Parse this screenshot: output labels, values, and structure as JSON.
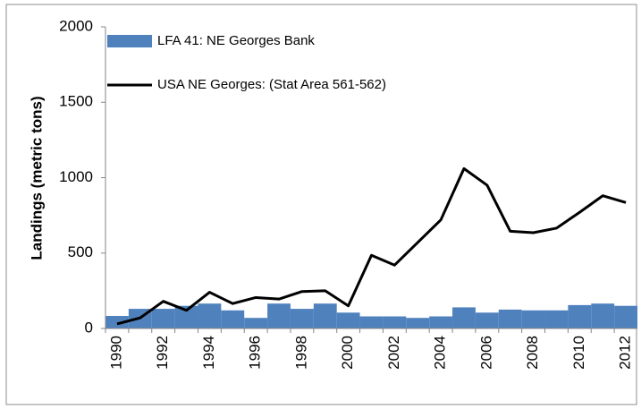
{
  "chart_data": {
    "type": "bar-line",
    "y_label": "Landings (metric tons)",
    "categories": [
      "1990",
      null,
      "1992",
      null,
      "1994",
      null,
      "1996",
      null,
      "1998",
      null,
      "2000",
      null,
      "2002",
      null,
      "2004",
      null,
      "2006",
      null,
      "2008",
      null,
      "2010",
      null,
      "2012"
    ],
    "series": [
      {
        "name": "LFA 41: NE Georges Bank",
        "type": "bar",
        "color": "#4f81bd",
        "values": [
          83,
          130,
          130,
          150,
          165,
          120,
          70,
          165,
          130,
          165,
          105,
          80,
          80,
          70,
          80,
          140,
          105,
          125,
          120,
          120,
          155,
          165,
          150
        ]
      },
      {
        "name": "USA NE Georges: (Stat Area 561-562)",
        "type": "line",
        "color": "#000000",
        "values": [
          30,
          70,
          180,
          120,
          240,
          165,
          205,
          195,
          245,
          250,
          150,
          485,
          420,
          570,
          720,
          1060,
          950,
          645,
          635,
          665,
          770,
          880,
          835
        ]
      }
    ],
    "ylim": [
      0,
      2000
    ],
    "yticks": [
      0,
      500,
      1000,
      1500,
      2000
    ],
    "grid": false,
    "legend": "top-left"
  }
}
